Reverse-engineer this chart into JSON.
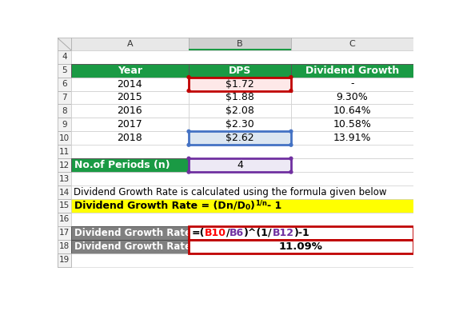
{
  "years": [
    "2014",
    "2015",
    "2016",
    "2017",
    "2018"
  ],
  "dps": [
    "$1.72",
    "$1.88",
    "$2.08",
    "$2.30",
    "$2.62"
  ],
  "growth": [
    "-",
    "9.30%",
    "10.64%",
    "10.58%",
    "13.91%"
  ],
  "periods_value": "4",
  "formula_text_line": "Dividend Growth Rate is calculated using the formula given below",
  "result_value": "11.09%",
  "green_bg": "#1a9a44",
  "pink_bg": "#fde8e8",
  "lightblue_bg": "#dce6f1",
  "lavender_bg": "#ede9f5",
  "yellow_bg": "#ffff00",
  "gray_bg": "#808080",
  "red_border": "#c00000",
  "blue_border": "#4472c4",
  "purple_border": "#7030a0",
  "col_header_bg": "#d9d9d9",
  "col_b_header_bg": "#bfbfbf",
  "row_header_bg": "#f2f2f2",
  "cell_line_color": "#d0d0d0",
  "outer_line_color": "#555555"
}
